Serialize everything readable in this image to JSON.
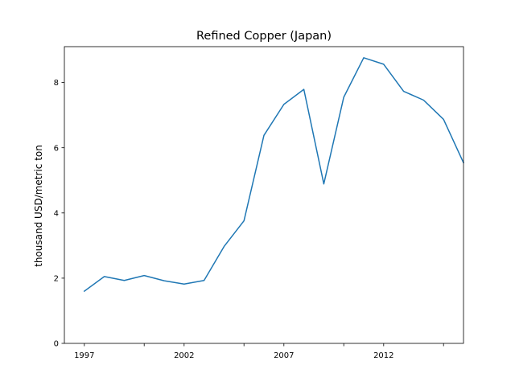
{
  "chart_data": {
    "type": "line",
    "title": "Refined Copper (Japan)",
    "xlabel": "",
    "ylabel": "thousand USD/metric ton",
    "xlim": [
      1996.0,
      2016.0
    ],
    "ylim": [
      0,
      9.1
    ],
    "xticks": [
      1997,
      2002,
      2007,
      2012
    ],
    "xticks_minor": [
      2000,
      2005,
      2010,
      2015
    ],
    "yticks": [
      0,
      2,
      4,
      6,
      8
    ],
    "grid": false,
    "series": [
      {
        "color": "#1f77b4",
        "x": [
          1997,
          1998,
          1999,
          2000,
          2001,
          2002,
          2003,
          2004,
          2005,
          2006,
          2007,
          2008,
          2009,
          2010,
          2011,
          2012,
          2013,
          2014,
          2015,
          2016
        ],
        "y": [
          1.6,
          2.05,
          1.93,
          2.08,
          1.92,
          1.82,
          1.93,
          2.97,
          3.76,
          6.38,
          7.33,
          7.79,
          4.89,
          7.55,
          8.76,
          8.56,
          7.73,
          7.46,
          6.87,
          5.54
        ]
      }
    ]
  }
}
